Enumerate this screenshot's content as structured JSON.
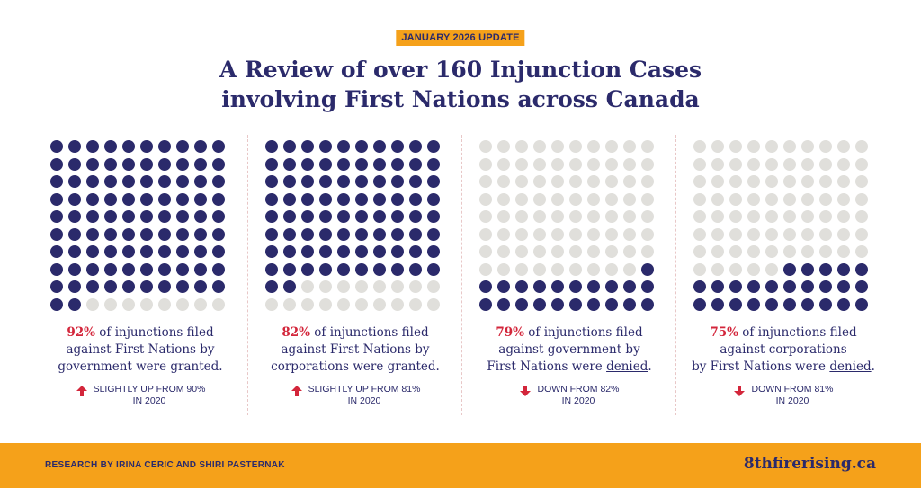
{
  "badge": "JANUARY 2026 UPDATE",
  "title_lines": [
    "A Review of over 160 Injunction Cases",
    "involving First Nations across Canada"
  ],
  "colors": {
    "accent": "#f5a11a",
    "navy": "#2b2a6b",
    "red": "#d3263b",
    "empty_dot": "#e0dfdb"
  },
  "chart_data": [
    {
      "type": "waffle",
      "total": 100,
      "value": 92,
      "fill_from": "top",
      "percent": "92%",
      "text": " of injunctions filed",
      "lines": [
        "against First Nations by",
        "government were granted."
      ],
      "trend": {
        "direction": "up",
        "line1": "SLIGHTLY UP FROM 90%",
        "line2": "IN 2020"
      }
    },
    {
      "type": "waffle",
      "total": 100,
      "value": 82,
      "fill_from": "top",
      "percent": "82%",
      "text": " of injunctions filed",
      "lines": [
        "against First Nations by",
        "corporations were granted."
      ],
      "trend": {
        "direction": "up",
        "line1": "SLIGHTLY UP FROM 81%",
        "line2": "IN 2020"
      }
    },
    {
      "type": "waffle",
      "total": 100,
      "value": 21,
      "fill_from": "bottom",
      "percent": "79%",
      "text": " of injunctions filed",
      "lines": [
        "against government by"
      ],
      "last_pre": "First Nations were ",
      "last_u": "denied",
      "last_post": ".",
      "trend": {
        "direction": "down",
        "line1": "DOWN FROM 82%",
        "line2": "IN 2020"
      }
    },
    {
      "type": "waffle",
      "total": 100,
      "value": 25,
      "fill_from": "bottom",
      "percent": "75%",
      "text": " of injunctions filed",
      "lines": [
        "against corporations"
      ],
      "last_pre": "by First Nations were ",
      "last_u": "denied",
      "last_post": ".",
      "trend": {
        "direction": "down",
        "line1": "DOWN FROM 81%",
        "line2": "IN 2020"
      }
    }
  ],
  "footer": {
    "credit": "RESEARCH BY IRINA CERIC AND SHIRI PASTERNAK",
    "site": "8thfirerising.ca"
  }
}
